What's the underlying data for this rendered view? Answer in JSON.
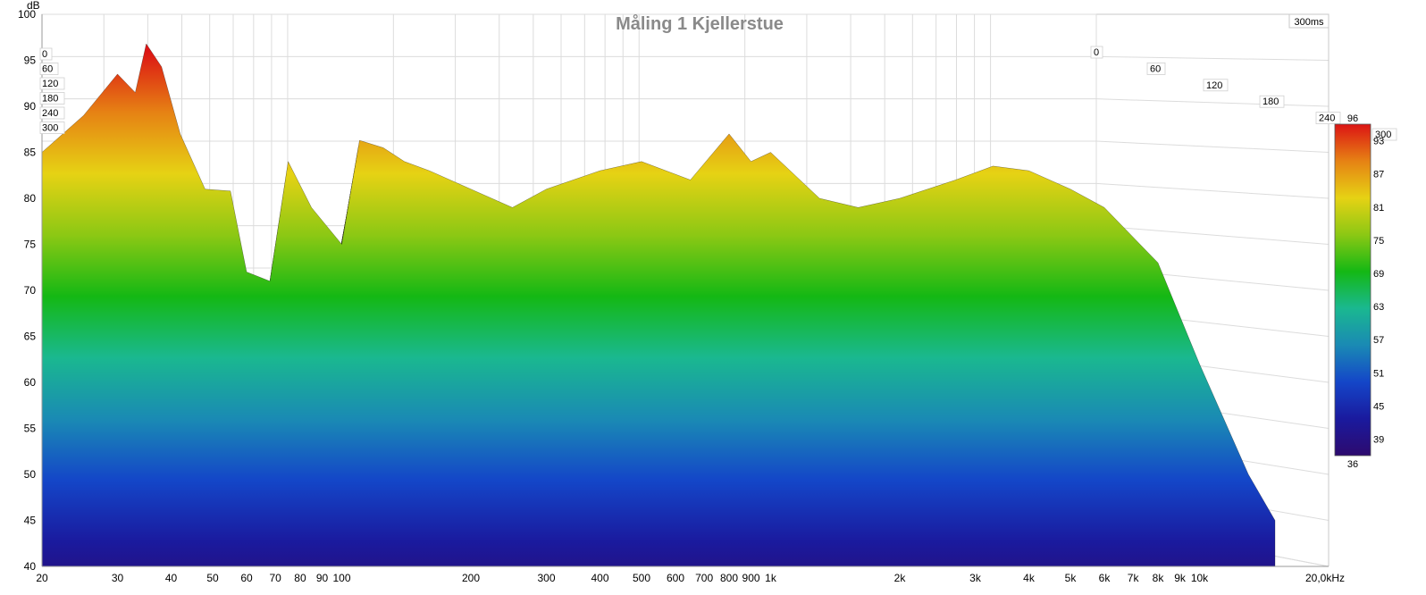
{
  "chart_data": {
    "type": "waterfall",
    "title": "Måling 1 Kjellerstue",
    "time_window_label": "300ms",
    "y_unit": "dB",
    "ylim": [
      40,
      100
    ],
    "y_ticks": [
      "100",
      "95",
      "90",
      "85",
      "80",
      "75",
      "70",
      "65",
      "60",
      "55",
      "50",
      "45",
      "40"
    ],
    "x_scale": "log",
    "xlim": [
      20,
      20000
    ],
    "x_ticks": [
      {
        "value": 20,
        "label": "20"
      },
      {
        "value": 30,
        "label": "30"
      },
      {
        "value": 40,
        "label": "40"
      },
      {
        "value": 50,
        "label": "50"
      },
      {
        "value": 60,
        "label": "60"
      },
      {
        "value": 70,
        "label": "70"
      },
      {
        "value": 80,
        "label": "80"
      },
      {
        "value": 90,
        "label": "90"
      },
      {
        "value": 100,
        "label": "100"
      },
      {
        "value": 200,
        "label": "200"
      },
      {
        "value": 300,
        "label": "300"
      },
      {
        "value": 400,
        "label": "400"
      },
      {
        "value": 500,
        "label": "500"
      },
      {
        "value": 600,
        "label": "600"
      },
      {
        "value": 700,
        "label": "700"
      },
      {
        "value": 800,
        "label": "800"
      },
      {
        "value": 900,
        "label": "900"
      },
      {
        "value": 1000,
        "label": "1k"
      },
      {
        "value": 2000,
        "label": "2k"
      },
      {
        "value": 3000,
        "label": "3k"
      },
      {
        "value": 4000,
        "label": "4k"
      },
      {
        "value": 5000,
        "label": "5k"
      },
      {
        "value": 6000,
        "label": "6k"
      },
      {
        "value": 7000,
        "label": "7k"
      },
      {
        "value": 8000,
        "label": "8k"
      },
      {
        "value": 9000,
        "label": "9k"
      },
      {
        "value": 10000,
        "label": "10k"
      },
      {
        "value": 20000,
        "label": "20,0kHz"
      }
    ],
    "time_ticks_left": [
      "0",
      "60",
      "120",
      "180",
      "240",
      "300"
    ],
    "time_ticks_right": [
      "0",
      "60",
      "120",
      "180",
      "240",
      "300"
    ],
    "time_range_ms": [
      0,
      300
    ],
    "colorbar": {
      "min": 36,
      "max": 96,
      "labels": [
        "96",
        "93",
        "87",
        "81",
        "75",
        "69",
        "63",
        "57",
        "51",
        "45",
        "39",
        "36"
      ],
      "colors": [
        "#2d0a6e",
        "#1a1a9e",
        "#1446c8",
        "#1a8ab4",
        "#1ab890",
        "#14b814",
        "#8cc814",
        "#e6d214",
        "#e68214",
        "#dc1414"
      ]
    },
    "initial_response_db": [
      {
        "f": 20,
        "db": 85
      },
      {
        "f": 25,
        "db": 89
      },
      {
        "f": 30,
        "db": 93.5
      },
      {
        "f": 33,
        "db": 91.5
      },
      {
        "f": 35,
        "db": 96.8
      },
      {
        "f": 38,
        "db": 94.3
      },
      {
        "f": 42,
        "db": 87
      },
      {
        "f": 48,
        "db": 81
      },
      {
        "f": 55,
        "db": 80.8
      },
      {
        "f": 60,
        "db": 72
      },
      {
        "f": 68,
        "db": 71
      },
      {
        "f": 75,
        "db": 84
      },
      {
        "f": 85,
        "db": 79
      },
      {
        "f": 100,
        "db": 75
      },
      {
        "f": 110,
        "db": 86.3
      },
      {
        "f": 125,
        "db": 85.5
      },
      {
        "f": 140,
        "db": 84
      },
      {
        "f": 160,
        "db": 83
      },
      {
        "f": 200,
        "db": 81
      },
      {
        "f": 250,
        "db": 79
      },
      {
        "f": 300,
        "db": 81
      },
      {
        "f": 400,
        "db": 83
      },
      {
        "f": 500,
        "db": 84
      },
      {
        "f": 650,
        "db": 82
      },
      {
        "f": 800,
        "db": 87
      },
      {
        "f": 900,
        "db": 84
      },
      {
        "f": 1000,
        "db": 85
      },
      {
        "f": 1300,
        "db": 80
      },
      {
        "f": 1600,
        "db": 79
      },
      {
        "f": 2000,
        "db": 80
      },
      {
        "f": 2700,
        "db": 82
      },
      {
        "f": 3300,
        "db": 83.5
      },
      {
        "f": 4000,
        "db": 83
      },
      {
        "f": 5000,
        "db": 81
      },
      {
        "f": 6000,
        "db": 79
      },
      {
        "f": 8000,
        "db": 73
      },
      {
        "f": 10000,
        "db": 62
      },
      {
        "f": 13000,
        "db": 50
      },
      {
        "f": 15000,
        "db": 45
      }
    ]
  }
}
